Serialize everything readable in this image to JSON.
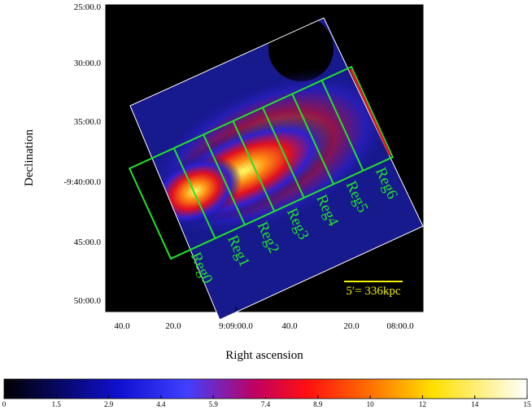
{
  "figure": {
    "x_label": "Right ascension",
    "y_label": "Declination",
    "xticks": [
      "40.0",
      "20.0",
      "9:09:00.0",
      "40.0",
      "20.0",
      "08:00.0"
    ],
    "yticks": [
      "25:00.0",
      "30:00.0",
      "35:00.0",
      "-9:40:00.0",
      "45:00.0",
      "50:00.0"
    ],
    "regions": [
      "Reg0",
      "Reg1",
      "Reg2",
      "Reg3",
      "Reg4",
      "Reg5",
      "Reg6"
    ],
    "scale_bar": "5′= 336kpc",
    "colorbar_ticks": [
      0,
      1.5,
      2.9,
      4.4,
      5.9,
      7.4,
      8.9,
      10,
      12,
      14,
      15
    ]
  }
}
